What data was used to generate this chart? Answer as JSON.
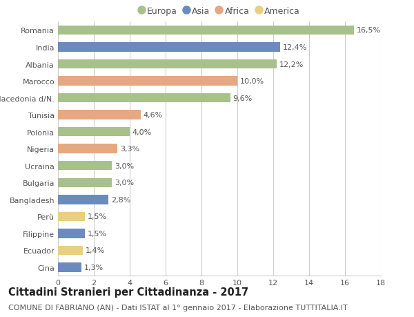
{
  "countries": [
    "Romania",
    "India",
    "Albania",
    "Marocco",
    "Macedonia d/N.",
    "Tunisia",
    "Polonia",
    "Nigeria",
    "Ucraina",
    "Bulgaria",
    "Bangladesh",
    "Perù",
    "Filippine",
    "Ecuador",
    "Cina"
  ],
  "values": [
    16.5,
    12.4,
    12.2,
    10.0,
    9.6,
    4.6,
    4.0,
    3.3,
    3.0,
    3.0,
    2.8,
    1.5,
    1.5,
    1.4,
    1.3
  ],
  "labels": [
    "16,5%",
    "12,4%",
    "12,2%",
    "10,0%",
    "9,6%",
    "4,6%",
    "4,0%",
    "3,3%",
    "3,0%",
    "3,0%",
    "2,8%",
    "1,5%",
    "1,5%",
    "1,4%",
    "1,3%"
  ],
  "continents": [
    "Europa",
    "Asia",
    "Europa",
    "Africa",
    "Europa",
    "Africa",
    "Europa",
    "Africa",
    "Europa",
    "Europa",
    "Asia",
    "America",
    "Asia",
    "America",
    "Asia"
  ],
  "colors": {
    "Europa": "#a8c08a",
    "Asia": "#6b8bbf",
    "Africa": "#e5a882",
    "America": "#e8d080"
  },
  "legend_order": [
    "Europa",
    "Asia",
    "Africa",
    "America"
  ],
  "xlim": [
    0,
    18
  ],
  "xticks": [
    0,
    2,
    4,
    6,
    8,
    10,
    12,
    14,
    16,
    18
  ],
  "title": "Cittadini Stranieri per Cittadinanza - 2017",
  "subtitle": "COMUNE DI FABRIANO (AN) - Dati ISTAT al 1° gennaio 2017 - Elaborazione TUTTITALIA.IT",
  "bg_color": "#ffffff",
  "grid_color": "#cccccc",
  "bar_height": 0.55,
  "title_fontsize": 10.5,
  "subtitle_fontsize": 8,
  "label_fontsize": 8,
  "tick_fontsize": 8,
  "legend_fontsize": 9
}
